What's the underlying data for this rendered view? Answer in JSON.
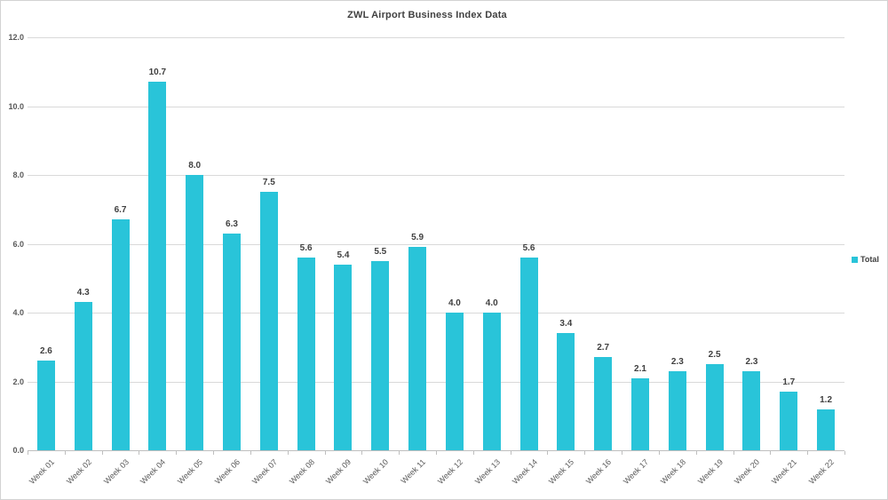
{
  "chart_data": {
    "type": "bar",
    "title": "ZWL Airport Business Index Data",
    "series_name": "Total",
    "categories": [
      "Week 01",
      "Week 02",
      "Week 03",
      "Week 04",
      "Week 05",
      "Week 06",
      "Week 07",
      "Week 08",
      "Week 09",
      "Week 10",
      "Week 11",
      "Week 12",
      "Week 13",
      "Week 14",
      "Week 15",
      "Week 16",
      "Week 17",
      "Week 18",
      "Week 19",
      "Week 20",
      "Week 21",
      "Week 22"
    ],
    "values": [
      2.6,
      4.3,
      6.7,
      10.7,
      8.0,
      6.3,
      7.5,
      5.6,
      5.4,
      5.5,
      5.9,
      4.0,
      4.0,
      5.6,
      3.4,
      2.7,
      2.1,
      2.3,
      2.5,
      2.3,
      1.7,
      1.2
    ],
    "ylim": [
      0,
      12
    ],
    "ytick_labels": [
      "12.0",
      "10.0",
      "8.0",
      "6.0",
      "4.0",
      "2.0",
      "0.0"
    ],
    "grid": true,
    "legend_position": "right",
    "colors": {
      "bar": "#29C4D9",
      "gridline": "#D9D9D9",
      "axis_line": "#BFBFBF",
      "title_text": "#404040",
      "value_label_text": "#404040",
      "axis_text": "#595959",
      "background": "#FFFFFF"
    }
  }
}
